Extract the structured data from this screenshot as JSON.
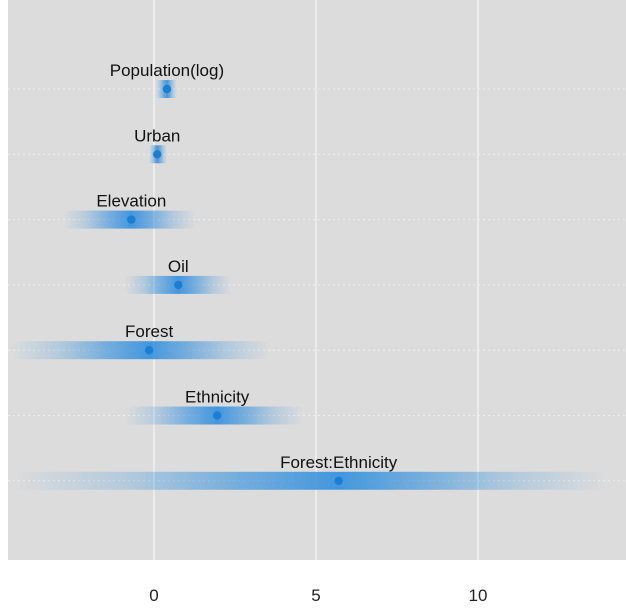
{
  "chart_data": {
    "type": "scatter",
    "title": "",
    "xlabel": "",
    "ylabel": "",
    "xlim": [
      -4.5,
      14.5
    ],
    "x_ticks": [
      0,
      5,
      10
    ],
    "x_tick_labels": [
      "0",
      "5",
      "10"
    ],
    "grid": true,
    "background_color": "#dcdcdc",
    "gridline_color": "#f2f2f2",
    "point_color": "#1a7fd4",
    "band_color": "#3b93dd",
    "coefficients": [
      {
        "label": "Population(log)",
        "estimate": 0.4,
        "lower": 0.05,
        "upper": 0.7
      },
      {
        "label": "Urban",
        "estimate": 0.1,
        "lower": -0.15,
        "upper": 0.4
      },
      {
        "label": "Elevation",
        "estimate": -0.7,
        "lower": -2.8,
        "upper": 1.3
      },
      {
        "label": "Oil",
        "estimate": 0.75,
        "lower": -0.9,
        "upper": 2.4
      },
      {
        "label": "Forest",
        "estimate": -0.15,
        "lower": -4.4,
        "upper": 3.6
      },
      {
        "label": "Ethnicity",
        "estimate": 1.95,
        "lower": -0.9,
        "upper": 4.6
      },
      {
        "label": "Forest:Ethnicity",
        "estimate": 5.7,
        "lower": -4.4,
        "upper": 14.0
      }
    ]
  }
}
